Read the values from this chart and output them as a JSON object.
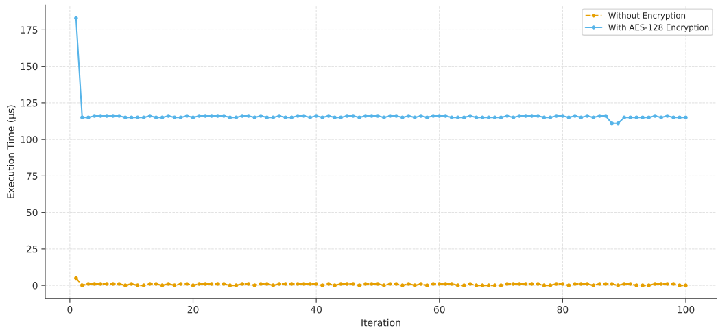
{
  "chart_data": {
    "type": "line",
    "xlabel": "Iteration",
    "ylabel": "Execution Time (µs)",
    "x": [
      1,
      2,
      3,
      4,
      5,
      6,
      7,
      8,
      9,
      10,
      11,
      12,
      13,
      14,
      15,
      16,
      17,
      18,
      19,
      20,
      21,
      22,
      23,
      24,
      25,
      26,
      27,
      28,
      29,
      30,
      31,
      32,
      33,
      34,
      35,
      36,
      37,
      38,
      39,
      40,
      41,
      42,
      43,
      44,
      45,
      46,
      47,
      48,
      49,
      50,
      51,
      52,
      53,
      54,
      55,
      56,
      57,
      58,
      59,
      60,
      61,
      62,
      63,
      64,
      65,
      66,
      67,
      68,
      69,
      70,
      71,
      72,
      73,
      74,
      75,
      76,
      77,
      78,
      79,
      80,
      81,
      82,
      83,
      84,
      85,
      86,
      87,
      88,
      89,
      90,
      91,
      92,
      93,
      94,
      95,
      96,
      97,
      98,
      99,
      100
    ],
    "series": [
      {
        "name": "Without Encryption",
        "color": "#e69f00",
        "line_style": "dashed",
        "values": [
          5,
          0,
          1,
          1,
          1,
          1,
          1,
          1,
          0,
          1,
          0,
          0,
          1,
          1,
          0,
          1,
          0,
          1,
          1,
          0,
          1,
          1,
          1,
          1,
          1,
          0,
          0,
          1,
          1,
          0,
          1,
          1,
          0,
          1,
          1,
          1,
          1,
          1,
          1,
          1,
          0,
          1,
          0,
          1,
          1,
          1,
          0,
          1,
          1,
          1,
          0,
          1,
          1,
          0,
          1,
          0,
          1,
          0,
          1,
          1,
          1,
          1,
          0,
          0,
          1,
          0,
          0,
          0,
          0,
          0,
          1,
          1,
          1,
          1,
          1,
          1,
          0,
          0,
          1,
          1,
          0,
          1,
          1,
          1,
          0,
          1,
          1,
          1,
          0,
          1,
          1,
          0,
          0,
          0,
          1,
          1,
          1,
          1,
          0,
          0
        ]
      },
      {
        "name": "With AES-128 Encryption",
        "color": "#56b4e9",
        "line_style": "solid",
        "values": [
          183,
          115,
          115,
          116,
          116,
          116,
          116,
          116,
          115,
          115,
          115,
          115,
          116,
          115,
          115,
          116,
          115,
          115,
          116,
          115,
          116,
          116,
          116,
          116,
          116,
          115,
          115,
          116,
          116,
          115,
          116,
          115,
          115,
          116,
          115,
          115,
          116,
          116,
          115,
          116,
          115,
          116,
          115,
          115,
          116,
          116,
          115,
          116,
          116,
          116,
          115,
          116,
          116,
          115,
          116,
          115,
          116,
          115,
          116,
          116,
          116,
          115,
          115,
          115,
          116,
          115,
          115,
          115,
          115,
          115,
          116,
          115,
          116,
          116,
          116,
          116,
          115,
          115,
          116,
          116,
          115,
          116,
          115,
          116,
          115,
          116,
          116,
          111,
          111,
          115,
          115,
          115,
          115,
          115,
          116,
          115,
          116,
          115,
          115,
          115
        ]
      }
    ],
    "xlim": [
      -4,
      105
    ],
    "ylim": [
      -9,
      192
    ],
    "xticks": [
      0,
      20,
      40,
      60,
      80,
      100
    ],
    "yticks": [
      0,
      25,
      50,
      75,
      100,
      125,
      150,
      175
    ],
    "grid": true,
    "legend": "top right",
    "marker": "circle"
  }
}
